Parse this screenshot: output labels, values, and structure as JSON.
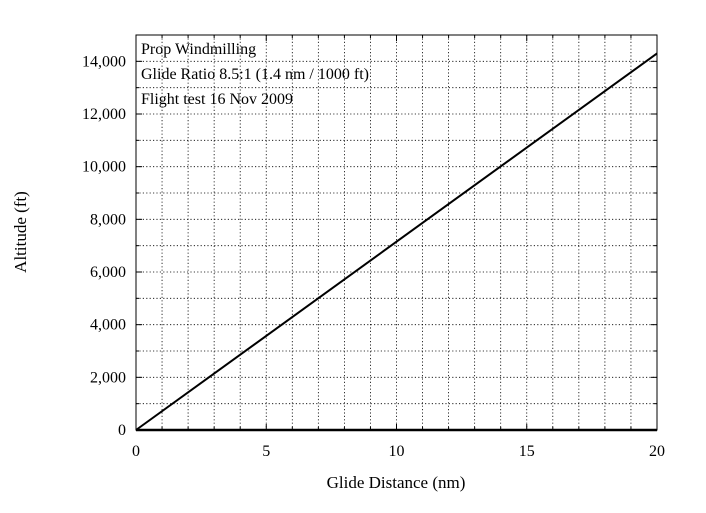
{
  "chart_data": {
    "type": "line",
    "title": "",
    "xlabel": "Glide Distance (nm)",
    "ylabel": "Altitude (ft)",
    "xlim": [
      0,
      20
    ],
    "ylim": [
      0,
      15000
    ],
    "xticks": [
      0,
      5,
      10,
      15,
      20
    ],
    "xtick_labels": [
      "0",
      "5",
      "10",
      "15",
      "20"
    ],
    "yticks": [
      0,
      2000,
      4000,
      6000,
      8000,
      10000,
      12000,
      14000
    ],
    "ytick_labels": [
      "0",
      "2,000",
      "4,000",
      "6,000",
      "8,000",
      "10,000",
      "12,000",
      "14,000"
    ],
    "x_minor_step": 1,
    "y_minor_step": 1000,
    "grid": true,
    "grid_style": "dotted",
    "annotations": [
      "Prop Windmilling",
      "Glide Ratio 8.5:1 (1.4 nm / 1000 ft)",
      "Flight test 16 Nov 2009"
    ],
    "series": [
      {
        "x": [
          0,
          20
        ],
        "y": [
          0,
          14300
        ],
        "color": "#000000"
      }
    ]
  }
}
